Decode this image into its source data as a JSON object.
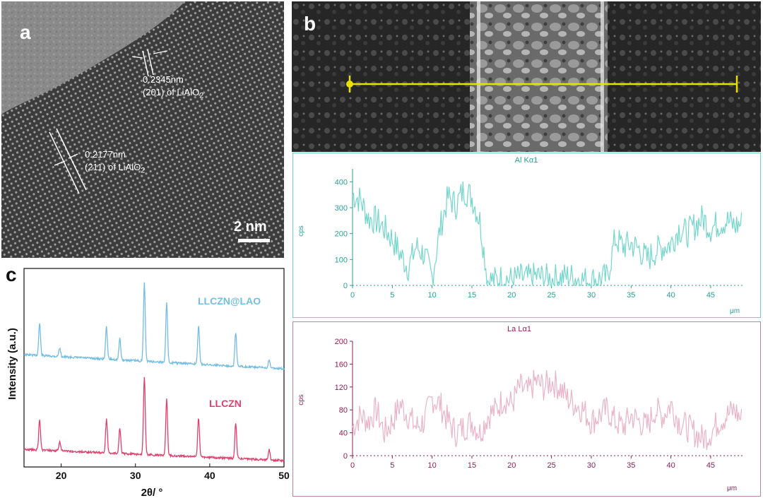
{
  "panel_a": {
    "letter": "a",
    "ann1_line1": "0.2345nm",
    "ann1_line2_pre": "(201) of LiAlO",
    "ann1_sub": "2",
    "ann2_line1": "0.2177nm",
    "ann2_line2_pre": "(211) of LiAlO",
    "ann2_sub": "2",
    "scalebar_label": "2 nm"
  },
  "panel_b": {
    "letter": "b",
    "colors": {
      "linescan": "#e8e000",
      "al": "#74d6cb",
      "la": "#e9b4c8",
      "al_frame": "#6fd0c6",
      "la_frame": "#b7879e",
      "al_axis": "#2aa196",
      "la_axis": "#8e1f55"
    }
  },
  "panel_c": {
    "letter": "c",
    "colors": {
      "top": "#74bde4",
      "bottom": "#e0406b"
    }
  },
  "chart_data": [
    {
      "type": "line",
      "title": "Al Kα1",
      "xlabel": "μm",
      "ylabel": "cps",
      "xlim": [
        0,
        49
      ],
      "ylim": [
        0,
        450
      ],
      "x_ticks": [
        0,
        5,
        10,
        15,
        20,
        25,
        30,
        35,
        40,
        45
      ],
      "y_ticks": [
        0,
        100,
        200,
        300,
        400
      ],
      "series": [
        {
          "x": [
            0,
            1,
            2,
            3,
            4,
            5,
            6,
            7,
            8,
            9,
            10,
            11,
            12,
            13,
            14,
            15,
            16,
            17,
            18,
            19,
            20,
            21,
            22,
            23,
            24,
            25,
            26,
            27,
            28,
            29,
            30,
            31,
            32,
            33,
            34,
            35,
            36,
            37,
            38,
            39,
            40,
            41,
            42,
            43,
            44,
            45,
            46,
            47,
            48,
            49
          ],
          "values": [
            350,
            330,
            260,
            250,
            220,
            180,
            120,
            70,
            150,
            120,
            30,
            220,
            340,
            310,
            370,
            340,
            250,
            20,
            20,
            30,
            20,
            30,
            25,
            35,
            30,
            25,
            30,
            35,
            30,
            20,
            20,
            25,
            30,
            180,
            150,
            160,
            140,
            100,
            130,
            150,
            160,
            220,
            200,
            230,
            260,
            220,
            240,
            250,
            230,
            240
          ]
        }
      ]
    },
    {
      "type": "line",
      "title": "La Lα1",
      "xlabel": "μm",
      "ylabel": "cps",
      "xlim": [
        0,
        49
      ],
      "ylim": [
        0,
        200
      ],
      "x_ticks": [
        0,
        5,
        10,
        15,
        20,
        25,
        30,
        35,
        40,
        45
      ],
      "y_ticks": [
        0,
        40,
        80,
        120,
        160,
        200
      ],
      "series": [
        {
          "x": [
            0,
            1,
            2,
            3,
            4,
            5,
            6,
            7,
            8,
            9,
            10,
            11,
            12,
            13,
            14,
            15,
            16,
            17,
            18,
            19,
            20,
            21,
            22,
            23,
            24,
            25,
            26,
            27,
            28,
            29,
            30,
            31,
            32,
            33,
            34,
            35,
            36,
            37,
            38,
            39,
            40,
            41,
            42,
            43,
            44,
            45,
            46,
            47,
            48,
            49
          ],
          "values": [
            50,
            70,
            60,
            80,
            40,
            60,
            90,
            70,
            50,
            60,
            100,
            90,
            60,
            40,
            50,
            60,
            40,
            70,
            80,
            100,
            90,
            120,
            110,
            130,
            120,
            130,
            120,
            100,
            90,
            80,
            60,
            70,
            80,
            60,
            50,
            70,
            60,
            50,
            80,
            70,
            90,
            60,
            50,
            40,
            30,
            40,
            60,
            70,
            80,
            60
          ]
        }
      ]
    },
    {
      "type": "line",
      "xlabel": "2θ/ °",
      "ylabel": "Intensity (a.u.)",
      "xlim": [
        15,
        50
      ],
      "x_ticks": [
        20,
        30,
        40,
        50
      ],
      "y_ticks_shown": false,
      "peaks_2theta": [
        17.1,
        19.8,
        26.1,
        27.9,
        31.2,
        34.2,
        38.5,
        43.5,
        48.0
      ],
      "series": [
        {
          "name": "LLCZN@LAO",
          "peak_heights": [
            0.38,
            0.1,
            0.38,
            0.25,
            0.92,
            0.7,
            0.45,
            0.4,
            0.1
          ]
        },
        {
          "name": "LLCZN",
          "peak_heights": [
            0.36,
            0.1,
            0.4,
            0.3,
            0.92,
            0.66,
            0.46,
            0.42,
            0.12
          ]
        }
      ]
    }
  ]
}
